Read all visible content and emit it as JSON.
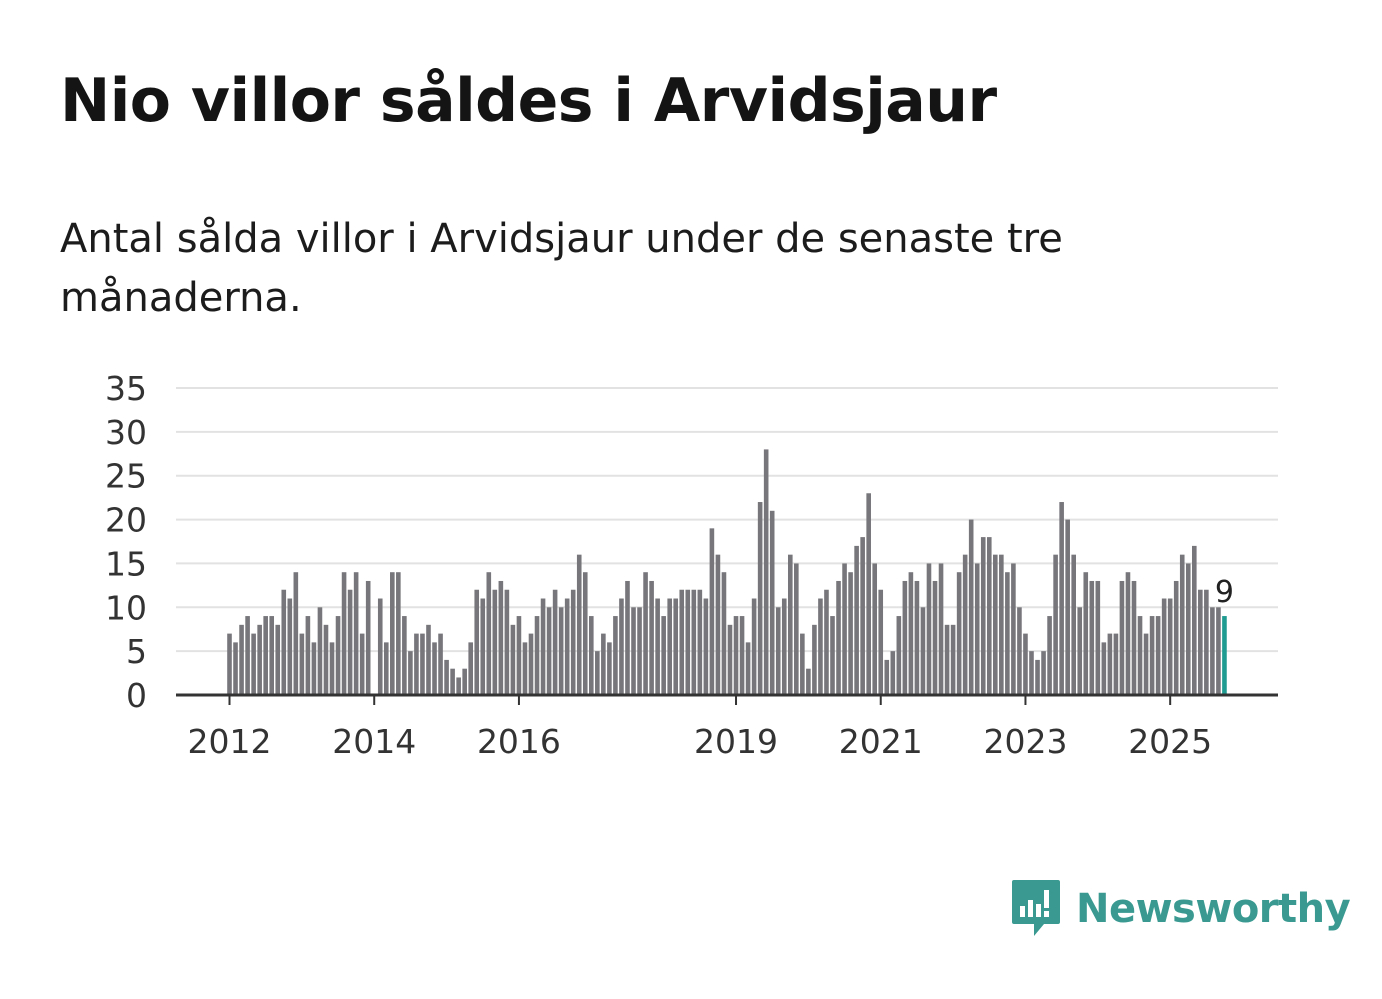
{
  "title": "Nio villor såldes i Arvidsjaur",
  "subtitle": "Antal sålda villor i Arvidsjaur under de senaste tre månaderna.",
  "brand": {
    "name": "Newsworthy",
    "color": "#3a9a91"
  },
  "colors": {
    "bar": "#77767b",
    "highlight": "#1f9b91",
    "grid": "#e2e2e2",
    "axis": "#333333"
  },
  "chart_data": {
    "type": "bar",
    "title": "Nio villor såldes i Arvidsjaur",
    "xlabel": "",
    "ylabel": "",
    "ylim": [
      0,
      35
    ],
    "yticks": [
      0,
      5,
      10,
      15,
      20,
      25,
      30,
      35
    ],
    "xtick_labels": [
      {
        "label": "2012",
        "index": 0
      },
      {
        "label": "2014",
        "index": 24
      },
      {
        "label": "2016",
        "index": 48
      },
      {
        "label": "2019",
        "index": 84
      },
      {
        "label": "2021",
        "index": 108
      },
      {
        "label": "2023",
        "index": 132
      },
      {
        "label": "2025",
        "index": 156
      }
    ],
    "highlight_label": "9",
    "values": [
      7,
      6,
      8,
      9,
      7,
      8,
      9,
      9,
      8,
      12,
      11,
      14,
      7,
      9,
      6,
      10,
      8,
      6,
      9,
      14,
      12,
      14,
      7,
      13,
      0,
      11,
      6,
      14,
      14,
      9,
      5,
      7,
      7,
      8,
      6,
      7,
      4,
      3,
      2,
      3,
      6,
      12,
      11,
      14,
      12,
      13,
      12,
      8,
      9,
      6,
      7,
      9,
      11,
      10,
      12,
      10,
      11,
      12,
      16,
      14,
      9,
      5,
      7,
      6,
      9,
      11,
      13,
      10,
      10,
      14,
      13,
      11,
      9,
      11,
      11,
      12,
      12,
      12,
      12,
      11,
      19,
      16,
      14,
      8,
      9,
      9,
      6,
      11,
      22,
      28,
      21,
      10,
      11,
      16,
      15,
      7,
      3,
      8,
      11,
      12,
      9,
      13,
      15,
      14,
      17,
      18,
      23,
      15,
      12,
      4,
      5,
      9,
      13,
      14,
      13,
      10,
      15,
      13,
      15,
      8,
      8,
      14,
      16,
      20,
      15,
      18,
      18,
      16,
      16,
      14,
      15,
      10,
      7,
      5,
      4,
      5,
      9,
      16,
      22,
      20,
      16,
      10,
      14,
      13,
      13,
      6,
      7,
      7,
      13,
      14,
      13,
      9,
      7,
      9,
      9,
      11,
      11,
      13,
      16,
      15,
      17,
      12,
      12,
      10,
      10,
      9
    ]
  }
}
